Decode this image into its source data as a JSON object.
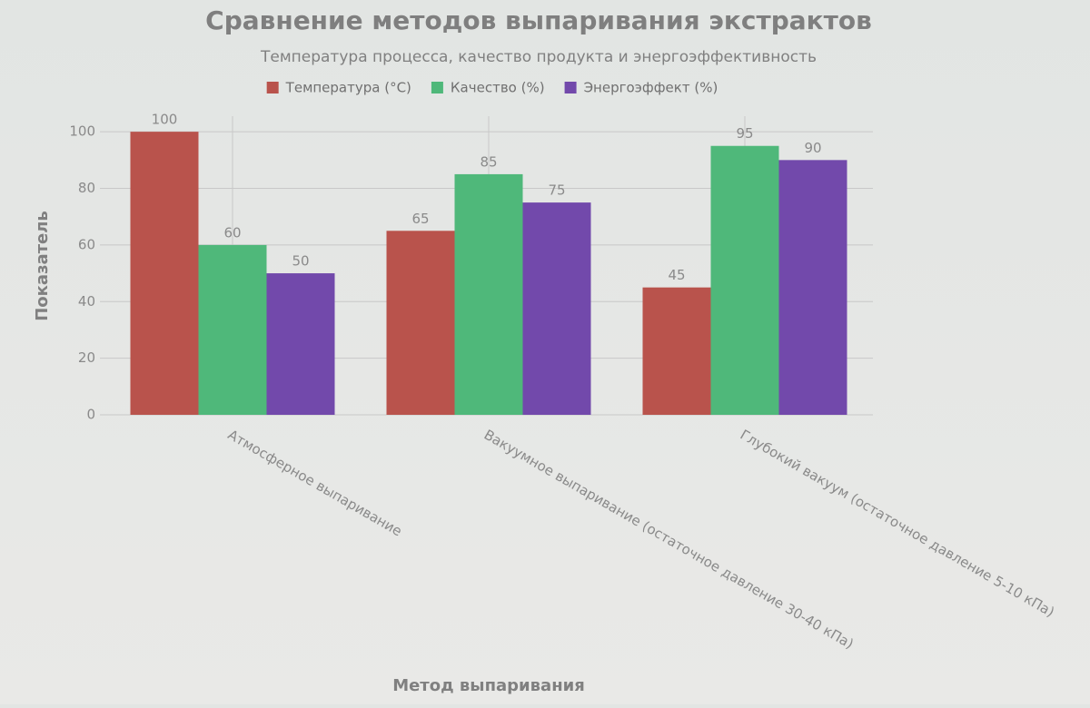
{
  "chart_data": {
    "type": "bar",
    "title": "Сравнение методов выпаривания экстрактов",
    "subtitle": "Температура процесса, качество продукта и энергоэффективность",
    "x_label": "Метод выпаривания",
    "y_label": "Показатель",
    "categories": [
      "Атмосферное выпаривание",
      "Вакуумное выпаривание (остаточное давление 30-40 кПа)",
      "Глубокий вакуум (остаточное давление 5-10 кПа)"
    ],
    "series": [
      {
        "name": "Температура (°C)",
        "color": "#b9534c",
        "values": [
          100,
          65,
          45
        ]
      },
      {
        "name": "Качество (%)",
        "color": "#4fb87a",
        "values": [
          60,
          85,
          95
        ]
      },
      {
        "name": "Энергоэффект (%)",
        "color": "#7249ab",
        "values": [
          50,
          75,
          90
        ]
      }
    ],
    "ylim": [
      0,
      105.5
    ],
    "yticks": [
      0,
      20,
      40,
      60,
      80,
      100
    ],
    "grid": true
  }
}
